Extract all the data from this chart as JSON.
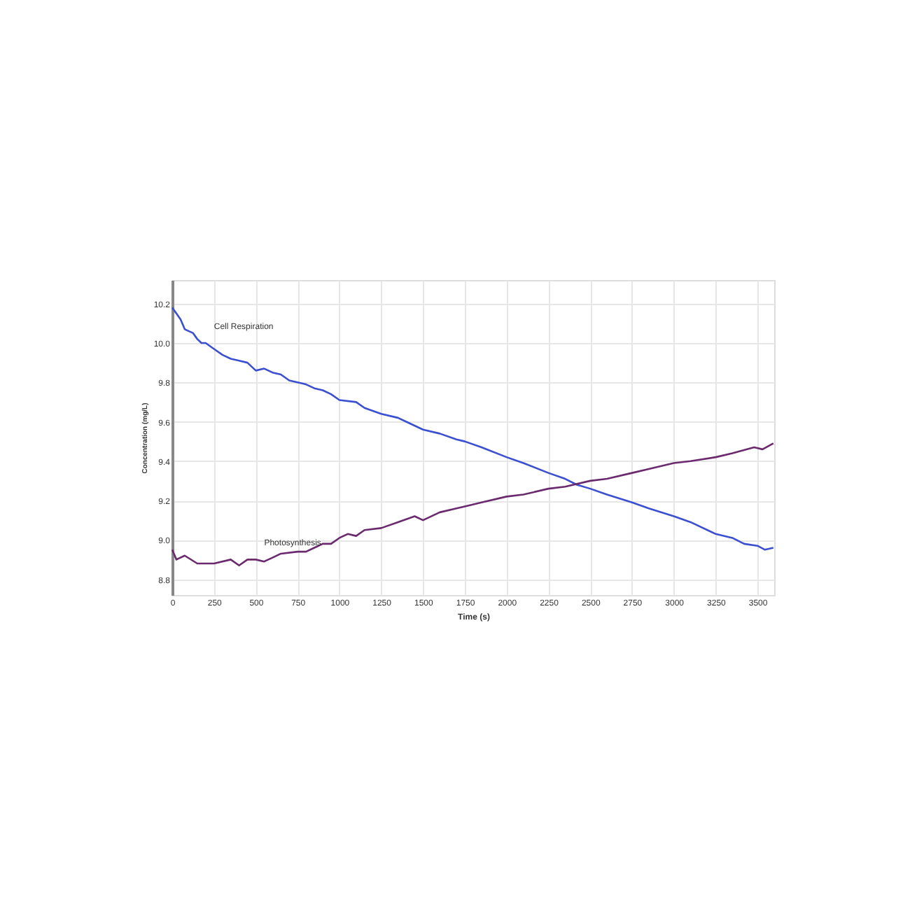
{
  "chart_data": {
    "type": "line",
    "xlabel": "Time (s)",
    "ylabel": "Concentration (mg/L)",
    "xlim": [
      0,
      3600
    ],
    "xticks": [
      0,
      250,
      500,
      750,
      1000,
      1250,
      1500,
      1750,
      2000,
      2250,
      2500,
      2750,
      3000,
      3250,
      3500
    ],
    "ylim": [
      8.72,
      10.32
    ],
    "yticks": [
      8.8,
      {
        "value": 9.0,
        "label": "9.0"
      },
      9.2,
      9.4,
      9.6,
      9.8,
      {
        "value": 10.0,
        "label": "10.0"
      },
      10.2
    ],
    "grid": true,
    "marker": "none",
    "line_style": "solid",
    "series": [
      {
        "name": "Cell Respiration",
        "color": "#3b4fd1",
        "x": [
          0,
          25,
          50,
          75,
          100,
          125,
          150,
          175,
          200,
          250,
          300,
          350,
          400,
          450,
          500,
          550,
          600,
          650,
          700,
          750,
          800,
          850,
          900,
          950,
          1000,
          1100,
          1150,
          1250,
          1350,
          1400,
          1500,
          1600,
          1700,
          1750,
          1850,
          2000,
          2100,
          2250,
          2350,
          2420,
          2500,
          2600,
          2750,
          2850,
          3000,
          3100,
          3250,
          3350,
          3420,
          3500,
          3545,
          3595
        ],
        "values": [
          10.18,
          10.15,
          10.12,
          10.07,
          10.06,
          10.05,
          10.02,
          10.0,
          10.0,
          9.97,
          9.94,
          9.92,
          9.91,
          9.9,
          9.86,
          9.87,
          9.85,
          9.84,
          9.81,
          9.8,
          9.79,
          9.77,
          9.76,
          9.74,
          9.71,
          9.7,
          9.67,
          9.64,
          9.62,
          9.6,
          9.56,
          9.54,
          9.51,
          9.5,
          9.47,
          9.42,
          9.39,
          9.34,
          9.31,
          9.28,
          9.26,
          9.23,
          9.19,
          9.16,
          9.12,
          9.09,
          9.03,
          9.01,
          8.98,
          8.97,
          8.95,
          8.96
        ]
      },
      {
        "name": "Photosynthesis",
        "color": "#6b2a6e",
        "x": [
          0,
          25,
          75,
          150,
          250,
          350,
          400,
          450,
          500,
          550,
          600,
          650,
          750,
          800,
          850,
          900,
          950,
          1000,
          1050,
          1100,
          1150,
          1250,
          1350,
          1450,
          1500,
          1600,
          1700,
          1750,
          1850,
          2000,
          2100,
          2250,
          2350,
          2500,
          2600,
          2750,
          2850,
          3000,
          3100,
          3250,
          3350,
          3480,
          3530,
          3595
        ],
        "values": [
          8.95,
          8.9,
          8.92,
          8.88,
          8.88,
          8.9,
          8.87,
          8.9,
          8.9,
          8.89,
          8.91,
          8.93,
          8.94,
          8.94,
          8.96,
          8.98,
          8.98,
          9.01,
          9.03,
          9.02,
          9.05,
          9.06,
          9.09,
          9.12,
          9.1,
          9.14,
          9.16,
          9.17,
          9.19,
          9.22,
          9.23,
          9.26,
          9.27,
          9.3,
          9.31,
          9.34,
          9.36,
          9.39,
          9.4,
          9.42,
          9.44,
          9.47,
          9.46,
          9.49
        ]
      }
    ]
  }
}
